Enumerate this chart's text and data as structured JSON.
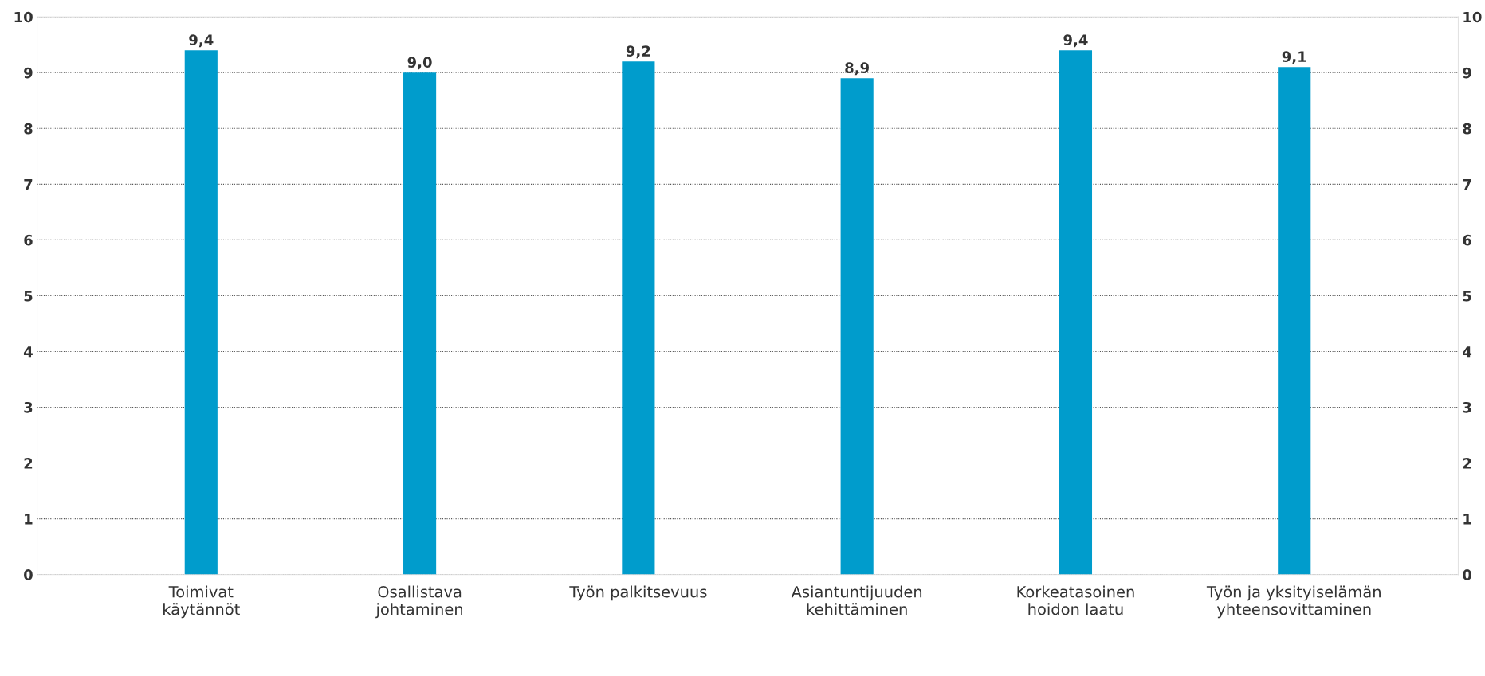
{
  "chart_data": {
    "type": "bar",
    "categories": [
      "Toimivat\nkäytännöt",
      "Osallistava\njohtaminen",
      "Työn palkitsevuus",
      "Asiantuntijuuden\nkehittäminen",
      "Korkeatasoinen\nhoidon laatu",
      "Työn ja yksityiselämän\nyhteensovittaminen"
    ],
    "values": [
      9.4,
      9.0,
      9.2,
      8.9,
      9.4,
      9.1
    ],
    "value_labels": [
      "9,4",
      "9,0",
      "9,2",
      "8,9",
      "9,4",
      "9,1"
    ],
    "color": "#009ccc",
    "ylim": [
      0,
      10
    ],
    "yticks": [
      0,
      1,
      2,
      3,
      4,
      5,
      6,
      7,
      8,
      9,
      10
    ],
    "y2lim": [
      0,
      10
    ],
    "y2ticks": [
      0,
      1,
      2,
      3,
      4,
      5,
      6,
      7,
      8,
      9,
      10
    ],
    "grid": "y"
  }
}
